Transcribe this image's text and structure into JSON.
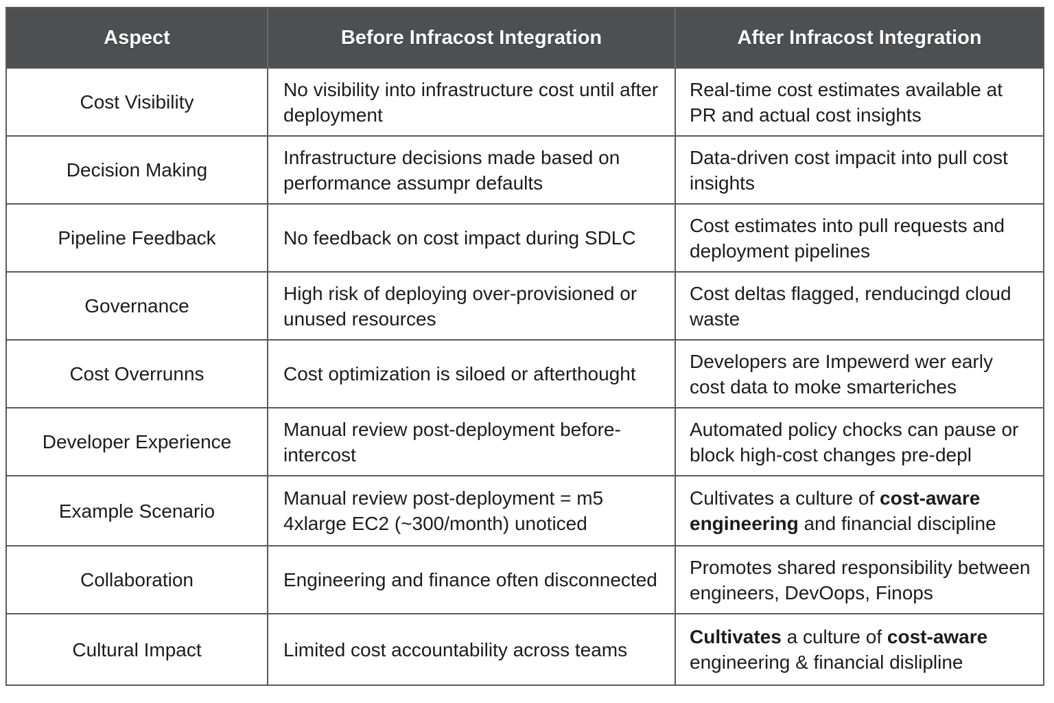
{
  "headers": [
    "Aspect",
    "Before Infracost Integration",
    "After Infracost Integration"
  ],
  "rows": [
    {
      "aspect": "Cost Visibility",
      "before": "No visibility into infrastructure cost until after deployment",
      "after": "Real-time cost estimates available at PR and actual cost insights"
    },
    {
      "aspect": "Decision Making",
      "before": "Infrastructure decisions made based on performance assumpr defaults",
      "after": "Data-driven cost impacit into pull cost insights"
    },
    {
      "aspect": "Pipeline Feedback",
      "before": "No feedback on cost impact during SDLC",
      "after": "Cost estimates into pull requests and deployment pipelines"
    },
    {
      "aspect": "Governance",
      "before": "High risk of deploying over-provisioned or unused resources",
      "after": "Cost deltas flagged, renducingd cloud waste"
    },
    {
      "aspect": "Cost Overrunns",
      "before": "Cost optimization is siloed or afterthought",
      "after": "Developers are Impewerd wer early cost data to moke smarteriches"
    },
    {
      "aspect": "Developer Experience",
      "before": "Manual review post-deployment before-intercost",
      "after": "Automated policy chocks can pause or block high-cost changes pre-depl"
    },
    {
      "aspect": "Example Scenario",
      "before": "Manual review post-deployment = m5 4xlarge EC2 (~300/month) unoticed",
      "after_parts": {
        "a": "Cultivates a culture of ",
        "b": "cost-aware engineering",
        "c": " and financial discipline"
      }
    },
    {
      "aspect": "Collaboration",
      "before": "Engineering and finance often disconnected",
      "after": "Promotes shared responsibility between engineers, DevOops, Finops"
    },
    {
      "aspect": "Cultural Impact",
      "before": "Limited cost accountability across teams",
      "after_parts": {
        "a": "Cultivates",
        "b": " a culture of ",
        "c": "cost-aware",
        "d": " engineering & financial dislipline"
      }
    }
  ]
}
